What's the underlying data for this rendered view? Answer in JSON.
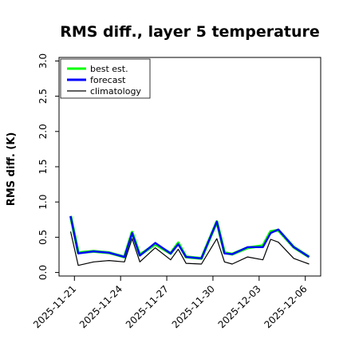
{
  "chart_data": {
    "type": "line",
    "title": "RMS diff., layer 5 temperature",
    "ylabel": "RMS diff. (K)",
    "xlabel": "",
    "ylim": [
      -0.05,
      3.05
    ],
    "yticks": [
      0.0,
      0.5,
      1.0,
      1.5,
      2.0,
      2.5,
      3.0
    ],
    "ytick_labels": [
      "0.0",
      "0.5",
      "1.0",
      "1.5",
      "2.0",
      "2.5",
      "3.0"
    ],
    "xlim": [
      "2025-11-20",
      "2025-12-07"
    ],
    "x_tick_labels": [
      {
        "date": "2025-11-21",
        "label": "2025-11-21",
        "color": "#000000"
      },
      {
        "date": "2025-11-24",
        "label": "2025-11-24",
        "color": "#000000"
      },
      {
        "date": "2025-11-27",
        "label": "2025-11-27",
        "color": "#228B22"
      },
      {
        "date": "2025-11-30",
        "label": "2025-11-30",
        "color": "#000000"
      },
      {
        "date": "2025-12-03",
        "label": "2025-12-03",
        "color": "#000000"
      },
      {
        "date": "2025-12-06",
        "label": "2025-12-06",
        "color": "#000000"
      }
    ],
    "legend_position": "top-left",
    "grid": false,
    "x": [
      "2025-11-20 18:00",
      "2025-11-21 06:00",
      "2025-11-22 06:00",
      "2025-11-23 06:00",
      "2025-11-24 06:00",
      "2025-11-24 18:00",
      "2025-11-25 06:00",
      "2025-11-26 06:00",
      "2025-11-27 06:00",
      "2025-11-27 18:00",
      "2025-11-28 06:00",
      "2025-11-29 06:00",
      "2025-11-30 06:00",
      "2025-11-30 18:00",
      "2025-12-01 06:00",
      "2025-12-02 06:00",
      "2025-12-03 06:00",
      "2025-12-03 18:00",
      "2025-12-04 06:00",
      "2025-12-05 06:00",
      "2025-12-06 06:00"
    ],
    "series": [
      {
        "name": "best est.",
        "color": "#00ff00",
        "values": [
          0.8,
          0.28,
          0.3,
          0.28,
          0.22,
          0.57,
          0.25,
          0.4,
          0.27,
          0.42,
          0.22,
          0.2,
          0.72,
          0.28,
          0.26,
          0.35,
          0.38,
          0.58,
          0.6,
          0.36,
          0.22
        ]
      },
      {
        "name": "forecast",
        "color": "#0000ff",
        "values": [
          0.8,
          0.27,
          0.3,
          0.28,
          0.22,
          0.56,
          0.24,
          0.42,
          0.27,
          0.4,
          0.22,
          0.2,
          0.72,
          0.27,
          0.26,
          0.36,
          0.36,
          0.56,
          0.61,
          0.36,
          0.22
        ]
      },
      {
        "name": "climatology",
        "color": "#000000",
        "values": [
          0.58,
          0.1,
          0.15,
          0.17,
          0.15,
          0.48,
          0.15,
          0.35,
          0.18,
          0.33,
          0.13,
          0.12,
          0.48,
          0.15,
          0.12,
          0.22,
          0.18,
          0.47,
          0.43,
          0.2,
          0.12
        ]
      }
    ]
  }
}
